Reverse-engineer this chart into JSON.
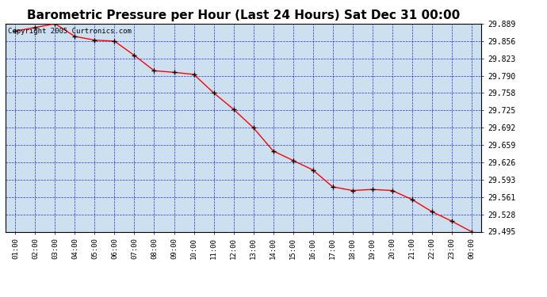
{
  "title": "Barometric Pressure per Hour (Last 24 Hours) Sat Dec 31 00:00",
  "copyright": "Copyright 2005 Curtronics.com",
  "x_labels": [
    "01:00",
    "02:00",
    "03:00",
    "04:00",
    "05:00",
    "06:00",
    "07:00",
    "08:00",
    "09:00",
    "10:00",
    "11:00",
    "12:00",
    "13:00",
    "14:00",
    "15:00",
    "16:00",
    "17:00",
    "18:00",
    "19:00",
    "20:00",
    "21:00",
    "22:00",
    "23:00",
    "00:00"
  ],
  "y_values": [
    29.875,
    29.882,
    29.889,
    29.865,
    29.858,
    29.856,
    29.829,
    29.8,
    29.797,
    29.793,
    29.758,
    29.727,
    29.692,
    29.648,
    29.63,
    29.612,
    29.58,
    29.573,
    29.575,
    29.573,
    29.556,
    29.533,
    29.515,
    29.495
  ],
  "y_ticks": [
    29.889,
    29.856,
    29.823,
    29.79,
    29.758,
    29.725,
    29.692,
    29.659,
    29.626,
    29.593,
    29.561,
    29.528,
    29.495
  ],
  "y_min": 29.495,
  "y_max": 29.889,
  "line_color": "red",
  "marker": "+",
  "marker_color": "#000000",
  "grid_color": "#0000cc",
  "bg_color": "#cce0f0",
  "fig_bg": "#ffffff",
  "title_fontsize": 11,
  "copyright_fontsize": 6.5
}
